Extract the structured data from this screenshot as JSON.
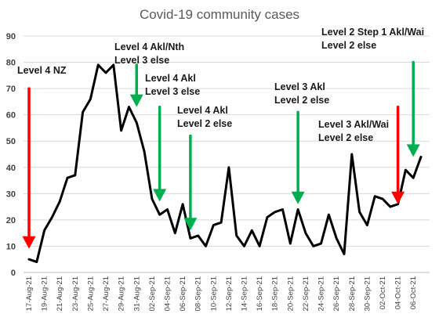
{
  "chart_data": {
    "type": "line",
    "title": "Covid-19 community cases",
    "xlabel": "",
    "ylabel": "",
    "ylim": [
      0,
      90
    ],
    "yticks": [
      0,
      10,
      20,
      30,
      40,
      50,
      60,
      70,
      80,
      90
    ],
    "grid": true,
    "legend": "none",
    "x": [
      "17-Aug-21",
      "18-Aug-21",
      "19-Aug-21",
      "20-Aug-21",
      "21-Aug-21",
      "22-Aug-21",
      "23-Aug-21",
      "24-Aug-21",
      "25-Aug-21",
      "26-Aug-21",
      "27-Aug-21",
      "28-Aug-21",
      "29-Aug-21",
      "30-Aug-21",
      "31-Aug-21",
      "01-Sep-21",
      "02-Sep-21",
      "03-Sep-21",
      "04-Sep-21",
      "05-Sep-21",
      "06-Sep-21",
      "07-Sep-21",
      "08-Sep-21",
      "09-Sep-21",
      "10-Sep-21",
      "11-Sep-21",
      "12-Sep-21",
      "13-Sep-21",
      "14-Sep-21",
      "15-Sep-21",
      "16-Sep-21",
      "17-Sep-21",
      "18-Sep-21",
      "19-Sep-21",
      "20-Sep-21",
      "21-Sep-21",
      "22-Sep-21",
      "23-Sep-21",
      "24-Sep-21",
      "25-Sep-21",
      "26-Sep-21",
      "27-Sep-21",
      "28-Sep-21",
      "29-Sep-21",
      "30-Sep-21",
      "01-Oct-21",
      "02-Oct-21",
      "03-Oct-21",
      "04-Oct-21",
      "05-Oct-21",
      "06-Oct-21",
      "07-Oct-21"
    ],
    "xtick_labels": [
      "17-Aug-21",
      "19-Aug-21",
      "21-Aug-21",
      "23-Aug-21",
      "25-Aug-21",
      "27-Aug-21",
      "29-Aug-21",
      "31-Aug-21",
      "02-Sep-21",
      "04-Sep-21",
      "06-Sep-21",
      "08-Sep-21",
      "10-Sep-21",
      "12-Sep-21",
      "14-Sep-21",
      "16-Sep-21",
      "18-Sep-21",
      "20-Sep-21",
      "22-Sep-21",
      "24-Sep-21",
      "26-Sep-21",
      "28-Sep-21",
      "30-Sep-21",
      "02-Oct-21",
      "04-Oct-21",
      "06-Oct-21"
    ],
    "series": [
      {
        "name": "",
        "color": "#000000",
        "values": [
          5,
          4,
          16,
          21,
          27,
          36,
          37,
          61,
          66,
          79,
          76,
          79,
          54,
          63,
          57,
          46,
          28,
          22,
          24,
          15,
          26,
          13,
          14,
          10,
          18,
          19,
          40,
          14,
          10,
          16,
          10,
          21,
          23,
          24,
          11,
          24,
          15,
          10,
          11,
          22,
          13,
          7,
          45,
          23,
          18,
          29,
          28,
          25,
          26,
          39,
          36,
          44
        ]
      }
    ],
    "annotations": [
      {
        "lines": [
          "Level 4 NZ"
        ],
        "date": "17-Aug-21",
        "arrow_color": "#ff0000",
        "arrow_from": 70,
        "arrow_to": 9
      },
      {
        "lines": [
          "Level 4 Akl/Nth",
          "Level 3 else"
        ],
        "date": "31-Aug-21",
        "arrow_color": "#00b050",
        "arrow_from": 79,
        "arrow_to": 63
      },
      {
        "lines": [
          "Level 4 Akl",
          "Level 3 else"
        ],
        "date": "03-Sep-21",
        "arrow_color": "#00b050",
        "arrow_from": 63,
        "arrow_to": 27
      },
      {
        "lines": [
          "Level 4 Akl",
          "Level 2 else"
        ],
        "date": "07-Sep-21",
        "arrow_color": "#00b050",
        "arrow_from": 52,
        "arrow_to": 16
      },
      {
        "lines": [
          "Level 3 Akl",
          "Level 2 else"
        ],
        "date": "21-Sep-21",
        "arrow_color": "#00b050",
        "arrow_from": 61,
        "arrow_to": 26
      },
      {
        "lines": [
          "Level 3 Akl/Wai",
          "Level 2 else"
        ],
        "date": "04-Oct-21",
        "arrow_color": "#ff0000",
        "arrow_from": 63,
        "arrow_to": 26
      },
      {
        "lines": [
          "Level 2 Step 1 Akl/Wai",
          "Level 2 else"
        ],
        "date": "06-Oct-21",
        "arrow_color": "#00b050",
        "arrow_from": 80,
        "arrow_to": 44
      }
    ]
  }
}
